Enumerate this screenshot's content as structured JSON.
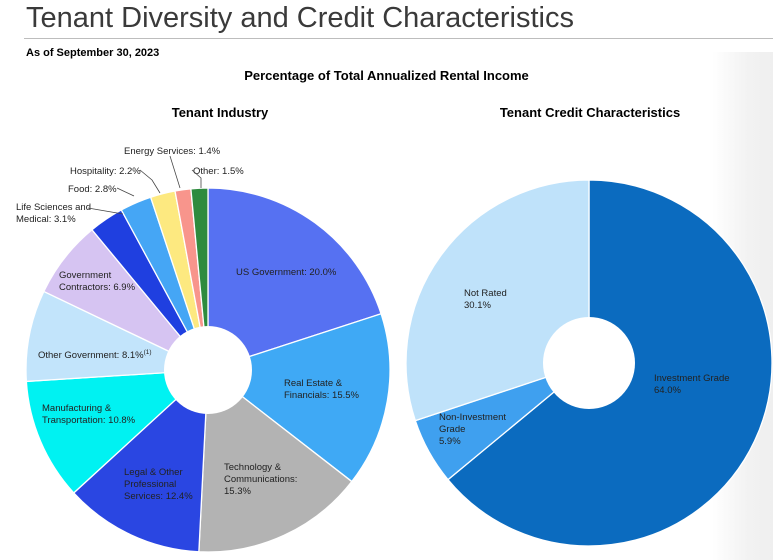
{
  "title": "Tenant Diversity and Credit Characteristics",
  "as_of": "As of September 30, 2023",
  "subtitle": "Percentage of Total Annualized Rental Income",
  "chart_data": [
    {
      "type": "pie",
      "title": "Tenant Industry",
      "slices": [
        {
          "label": "US Government: 20.0%",
          "value": 20.0,
          "color": "#5671f2"
        },
        {
          "label": "Real Estate & Financials: 15.5%",
          "value": 15.5,
          "color": "#3fa9f5"
        },
        {
          "label": "Technology & Communications: 15.3%",
          "value": 15.3,
          "color": "#b3b3b3"
        },
        {
          "label": "Legal & Other Professional Services: 12.4%",
          "value": 12.4,
          "color": "#2a46e2"
        },
        {
          "label": "Manufacturing & Transportation: 10.8%",
          "value": 10.8,
          "color": "#00f2f2"
        },
        {
          "label": "Other Government: 8.1%",
          "value": 8.1,
          "color": "#c2e4fb",
          "footnote": "(1)"
        },
        {
          "label": "Government Contractors: 6.9%",
          "value": 6.9,
          "color": "#d6c4f2"
        },
        {
          "label": "Life Sciences and Medical: 3.1%",
          "value": 3.1,
          "color": "#1f3fe0"
        },
        {
          "label": "Food: 2.8%",
          "value": 2.8,
          "color": "#45a6f5"
        },
        {
          "label": "Hospitality: 2.2%",
          "value": 2.2,
          "color": "#fde980"
        },
        {
          "label": "Energy Services: 1.4%",
          "value": 1.4,
          "color": "#f8958c"
        },
        {
          "label": "Other: 1.5%",
          "value": 1.5,
          "color": "#2e8b3e"
        }
      ]
    },
    {
      "type": "pie",
      "title": "Tenant Credit Characteristics",
      "slices": [
        {
          "label": "Investment Grade 64.0%",
          "value": 64.0,
          "color": "#0b6bbf"
        },
        {
          "label": "Non-Investment Grade 5.9%",
          "value": 5.9,
          "color": "#3fa0ef"
        },
        {
          "label": "Not Rated 30.1%",
          "value": 30.1,
          "color": "#bfe2fa"
        }
      ]
    }
  ]
}
